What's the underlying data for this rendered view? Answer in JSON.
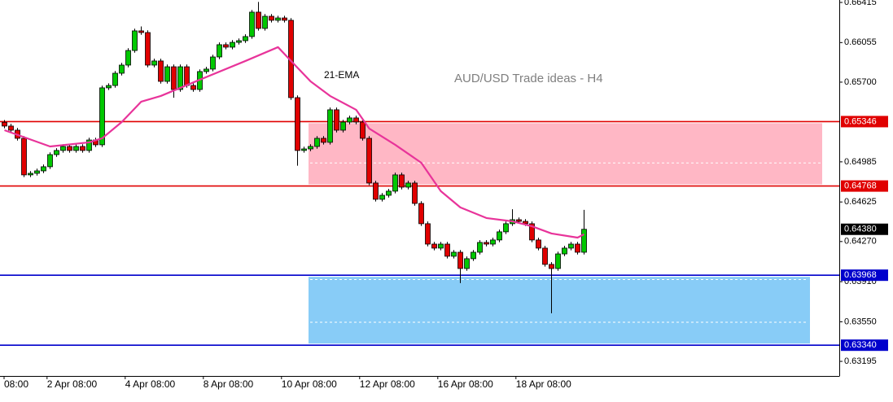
{
  "chart_data": {
    "type": "candlestick",
    "title": "AUD/USD Trade ideas - H4",
    "ema_label": "21-EMA",
    "up_color": "#00c800",
    "down_color": "#e00000",
    "ema_color": "#e8349a",
    "ylim": [
      0.63064,
      0.66437
    ],
    "yticks": [
      0.66415,
      0.66055,
      {
        "value": 0.657,
        "label": "0.65700"
      },
      0.64985,
      0.64625,
      {
        "value": 0.6427,
        "label": "0.64270"
      },
      {
        "value": 0.6391,
        "label": "0.63910"
      },
      {
        "value": 0.6355,
        "label": "0.63550"
      },
      0.63195
    ],
    "xticks": [
      {
        "value": 0,
        "label": "08:00"
      },
      {
        "value": 6.6,
        "label": "2 Apr 08:00"
      },
      {
        "value": 18.6,
        "label": "4 Apr 08:00"
      },
      {
        "value": 30.6,
        "label": "8 Apr 08:00"
      },
      {
        "value": 42.6,
        "label": "10 Apr 08:00"
      },
      {
        "value": 54.6,
        "label": "12 Apr 08:00"
      },
      {
        "value": 66.6,
        "label": "16 Apr 08:00"
      },
      {
        "value": 78.6,
        "label": "18 Apr 08:00"
      }
    ],
    "levels": [
      {
        "value": 0.65346,
        "color": "#e00000"
      },
      {
        "value": 0.64768,
        "color": "#e00000"
      },
      {
        "value": 0.63968,
        "color": "#0000cc"
      },
      {
        "value": {
          "value": 0.6334,
          "label": "0.63340"
        },
        "color": "#0000cc"
      }
    ],
    "last_price": {
      "value": 0.6438,
      "label": "0.64380"
    },
    "ohlc": [
      [
        0.6534,
        0.6536,
        0.65286,
        0.65306
      ],
      [
        0.65306,
        0.65326,
        0.65249,
        0.65269
      ],
      [
        0.65269,
        0.65289,
        0.65176,
        0.65196
      ],
      [
        0.65196,
        0.65216,
        0.64848,
        0.64868
      ],
      [
        0.64868,
        0.64902,
        0.64848,
        0.64882
      ],
      [
        0.64882,
        0.64924,
        0.64862,
        0.64904
      ],
      [
        0.64904,
        0.64961,
        0.64884,
        0.64941
      ],
      [
        0.64941,
        0.6507,
        0.64921,
        0.6505
      ],
      [
        0.6505,
        0.65107,
        0.6503,
        0.65087
      ],
      [
        0.65087,
        0.65143,
        0.65067,
        0.65123
      ],
      [
        0.65123,
        0.65143,
        0.65067,
        0.65087
      ],
      [
        0.65087,
        0.65143,
        0.65067,
        0.65123
      ],
      [
        0.65123,
        0.65143,
        0.65067,
        0.65087
      ],
      [
        0.65087,
        0.65201,
        0.65067,
        0.65181
      ],
      [
        0.65181,
        0.65201,
        0.65118,
        0.65138
      ],
      [
        0.65138,
        0.65669,
        0.65118,
        0.65649
      ],
      [
        0.65649,
        0.6569,
        0.65629,
        0.6567
      ],
      [
        0.6567,
        0.658,
        0.6565,
        0.6578
      ],
      [
        0.6578,
        0.65873,
        0.6576,
        0.65853
      ],
      [
        0.65853,
        0.66004,
        0.65833,
        0.65984
      ],
      [
        0.65984,
        0.6618,
        0.65964,
        0.6616
      ],
      [
        0.6616,
        0.662,
        0.66125,
        0.66145
      ],
      [
        0.66145,
        0.66165,
        0.65833,
        0.65853
      ],
      [
        0.65853,
        0.6591,
        0.65833,
        0.6589
      ],
      [
        0.6589,
        0.6591,
        0.65687,
        0.65707
      ],
      [
        0.65707,
        0.65858,
        0.65687,
        0.65838
      ],
      [
        0.65838,
        0.65858,
        0.6556,
        0.65634
      ],
      [
        0.65634,
        0.65858,
        0.65614,
        0.65838
      ],
      [
        0.65838,
        0.65858,
        0.6565,
        0.6567
      ],
      [
        0.6567,
        0.6569,
        0.65614,
        0.65634
      ],
      [
        0.65634,
        0.65815,
        0.65614,
        0.65795
      ],
      [
        0.65795,
        0.65837,
        0.65775,
        0.65817
      ],
      [
        0.65817,
        0.65946,
        0.65797,
        0.65926
      ],
      [
        0.65926,
        0.66056,
        0.65906,
        0.66036
      ],
      [
        0.66036,
        0.66056,
        0.65994,
        0.66014
      ],
      [
        0.66014,
        0.66077,
        0.65994,
        0.66057
      ],
      [
        0.66057,
        0.66092,
        0.66037,
        0.66072
      ],
      [
        0.66072,
        0.66129,
        0.66052,
        0.66109
      ],
      [
        0.66109,
        0.66348,
        0.66089,
        0.66328
      ],
      [
        0.66328,
        0.6642,
        0.66162,
        0.66182
      ],
      [
        0.66182,
        0.66311,
        0.66162,
        0.66291
      ],
      [
        0.66291,
        0.66311,
        0.66235,
        0.66255
      ],
      [
        0.66255,
        0.66296,
        0.66235,
        0.66276
      ],
      [
        0.66276,
        0.66296,
        0.66235,
        0.66255
      ],
      [
        0.66255,
        0.66275,
        0.65541,
        0.65561
      ],
      [
        0.65561,
        0.65581,
        0.6495,
        0.65087
      ],
      [
        0.65087,
        0.65121,
        0.65067,
        0.65101
      ],
      [
        0.65101,
        0.65143,
        0.65081,
        0.65123
      ],
      [
        0.65123,
        0.65216,
        0.65103,
        0.65196
      ],
      [
        0.65196,
        0.65216,
        0.6514,
        0.6516
      ],
      [
        0.6516,
        0.65472,
        0.6514,
        0.65452
      ],
      [
        0.65452,
        0.65472,
        0.65249,
        0.65269
      ],
      [
        0.65269,
        0.65362,
        0.65249,
        0.65342
      ],
      [
        0.65342,
        0.65399,
        0.65322,
        0.65379
      ],
      [
        0.65379,
        0.65399,
        0.65322,
        0.65342
      ],
      [
        0.65342,
        0.65362,
        0.65176,
        0.65196
      ],
      [
        0.65196,
        0.65216,
        0.64775,
        0.64795
      ],
      [
        0.64795,
        0.64815,
        0.64629,
        0.64649
      ],
      [
        0.64649,
        0.64705,
        0.64629,
        0.64685
      ],
      [
        0.64685,
        0.64742,
        0.64665,
        0.64722
      ],
      [
        0.64722,
        0.64888,
        0.64702,
        0.64868
      ],
      [
        0.64868,
        0.64888,
        0.64738,
        0.64758
      ],
      [
        0.64758,
        0.64815,
        0.64738,
        0.64795
      ],
      [
        0.64795,
        0.64815,
        0.64592,
        0.64612
      ],
      [
        0.64612,
        0.64632,
        0.6441,
        0.6443
      ],
      [
        0.6443,
        0.6445,
        0.64227,
        0.64247
      ],
      [
        0.64247,
        0.64267,
        0.64191,
        0.64211
      ],
      [
        0.64211,
        0.64267,
        0.64191,
        0.64247
      ],
      [
        0.64247,
        0.64267,
        0.64118,
        0.64138
      ],
      [
        0.64138,
        0.64194,
        0.64118,
        0.64174
      ],
      [
        0.64174,
        0.64194,
        0.63897,
        0.64028
      ],
      [
        0.64028,
        0.64136,
        0.64008,
        0.64116
      ],
      [
        0.64116,
        0.64194,
        0.64096,
        0.64174
      ],
      [
        0.64174,
        0.64282,
        0.64154,
        0.64262
      ],
      [
        0.64262,
        0.64282,
        0.64227,
        0.64247
      ],
      [
        0.64247,
        0.64304,
        0.64227,
        0.64284
      ],
      [
        0.64284,
        0.64377,
        0.64264,
        0.64357
      ],
      [
        0.64357,
        0.6445,
        0.64337,
        0.6443
      ],
      [
        0.6443,
        0.6456,
        0.6441,
        0.64466
      ],
      [
        0.64466,
        0.64486,
        0.64431,
        0.64451
      ],
      [
        0.64451,
        0.64471,
        0.6441,
        0.6443
      ],
      [
        0.6443,
        0.6445,
        0.64264,
        0.64284
      ],
      [
        0.64284,
        0.64304,
        0.64191,
        0.64211
      ],
      [
        0.64211,
        0.64231,
        0.64045,
        0.64065
      ],
      [
        0.64065,
        0.64085,
        0.63626,
        0.64028
      ],
      [
        0.64028,
        0.64179,
        0.64008,
        0.64159
      ],
      [
        0.64159,
        0.64231,
        0.64139,
        0.64211
      ],
      [
        0.64211,
        0.64267,
        0.64191,
        0.64247
      ],
      [
        0.64247,
        0.64267,
        0.64154,
        0.64174
      ],
      [
        0.64174,
        0.64554,
        0.64154,
        0.6438
      ]
    ],
    "ema": {
      "x": [
        0,
        7,
        13,
        15,
        18,
        21,
        24,
        30,
        37,
        42,
        44,
        47,
        50,
        54,
        56,
        60,
        64,
        67,
        70,
        74,
        78,
        81,
        84,
        88,
        89
      ],
      "values": [
        0.65269,
        0.65123,
        0.6516,
        0.65196,
        0.65342,
        0.65525,
        0.65576,
        0.65722,
        0.6589,
        0.66014,
        0.6589,
        0.65707,
        0.65576,
        0.65452,
        0.65284,
        0.65138,
        0.64977,
        0.64722,
        0.64576,
        0.64481,
        0.64451,
        0.64407,
        0.64342,
        0.64305,
        0.64335
      ]
    }
  }
}
